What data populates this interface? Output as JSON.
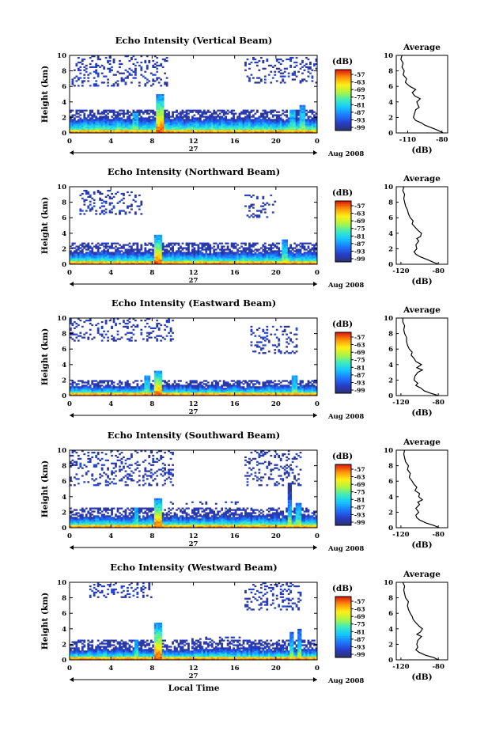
{
  "figure": {
    "date_label": "Aug 2008",
    "x_label": "Local Time",
    "day_label": "27",
    "y_label": "Height (km)",
    "colorbar_unit": "(dB)",
    "avg_title": "Average",
    "avg_unit": "(dB)"
  },
  "chart_data": [
    {
      "type": "heatmap",
      "title": "Echo Intensity (Vertical Beam)",
      "ylabel": "Height (km)",
      "xlabel": "",
      "x_ticks": [
        "0",
        "4",
        "8",
        "12",
        "16",
        "20",
        "0"
      ],
      "y_ticks": [
        "0",
        "2",
        "4",
        "6",
        "8",
        "10"
      ],
      "xlim": [
        0,
        24
      ],
      "ylim": [
        0,
        10
      ],
      "colorbar_ticks": [
        "-57",
        "-63",
        "-69",
        "-75",
        "-81",
        "-87",
        "-93",
        "-99"
      ],
      "color_range": [
        -99,
        -57
      ],
      "features": {
        "bl_top_km": 1.9,
        "bl_upper_km": 3.0,
        "tower_hour": 8.7,
        "tower_top_km": 5.0,
        "minor_towers": [
          {
            "hour": 6.4,
            "top_km": 2.6
          },
          {
            "hour": 21.6,
            "top_km": 3.0
          },
          {
            "hour": 22.6,
            "top_km": 3.6
          }
        ],
        "high_clouds": [
          {
            "from_hour": 0.1,
            "to_hour": 9.6,
            "bottom_km": 6.0,
            "top_km": 10.0
          },
          {
            "from_hour": 17.0,
            "to_hour": 24.0,
            "bottom_km": 6.5,
            "top_km": 9.8
          }
        ]
      },
      "average_profile": {
        "title": "Average",
        "xlabel": "(dB)",
        "x_ticks": [
          "-110",
          "-80"
        ],
        "xlim": [
          -120,
          -75
        ],
        "ylim": [
          0,
          10
        ],
        "height_km": [
          0,
          0.3,
          0.6,
          1.0,
          1.3,
          1.6,
          2.0,
          2.5,
          3.0,
          3.3,
          3.6,
          4.0,
          4.4,
          4.8,
          5.2,
          5.6,
          6.0,
          6.5,
          7.0,
          7.5,
          8.0,
          8.5,
          9.0,
          9.5,
          10.0
        ],
        "echo_db": [
          -79,
          -83,
          -88,
          -95,
          -98,
          -103,
          -105,
          -104,
          -103,
          -100,
          -101,
          -102,
          -99,
          -104,
          -106,
          -103,
          -108,
          -112,
          -111,
          -114,
          -113,
          -115,
          -114,
          -116,
          -115
        ]
      }
    },
    {
      "type": "heatmap",
      "title": "Echo Intensity (Northward Beam)",
      "ylabel": "Height (km)",
      "xlabel": "",
      "x_ticks": [
        "0",
        "4",
        "8",
        "12",
        "16",
        "20",
        "0"
      ],
      "y_ticks": [
        "0",
        "2",
        "4",
        "6",
        "8",
        "10"
      ],
      "xlim": [
        0,
        24
      ],
      "ylim": [
        0,
        10
      ],
      "colorbar_ticks": [
        "-57",
        "-63",
        "-69",
        "-75",
        "-81",
        "-87",
        "-93",
        "-99"
      ],
      "color_range": [
        -99,
        -57
      ],
      "features": {
        "bl_top_km": 1.6,
        "bl_upper_km": 2.8,
        "tower_hour": 8.6,
        "tower_top_km": 3.8,
        "minor_towers": [
          {
            "hour": 20.8,
            "top_km": 3.2
          }
        ],
        "high_clouds": [
          {
            "from_hour": 1.0,
            "to_hour": 7.0,
            "bottom_km": 6.5,
            "top_km": 9.5
          },
          {
            "from_hour": 17.0,
            "to_hour": 20.0,
            "bottom_km": 6.0,
            "top_km": 9.0
          }
        ]
      },
      "average_profile": {
        "title": "Average",
        "xlabel": "(dB)",
        "x_ticks": [
          "-120",
          "-80"
        ],
        "xlim": [
          -125,
          -70
        ],
        "ylim": [
          0,
          10
        ],
        "height_km": [
          0,
          0.3,
          0.6,
          1.0,
          1.3,
          1.6,
          2.0,
          2.5,
          3.0,
          3.3,
          3.6,
          4.0,
          4.4,
          4.8,
          5.2,
          5.6,
          6.0,
          6.5,
          7.0,
          7.5,
          8.0,
          8.5,
          9.0,
          9.5,
          10.0
        ],
        "echo_db": [
          -80,
          -86,
          -92,
          -100,
          -104,
          -106,
          -103,
          -104,
          -101,
          -103,
          -99,
          -98,
          -102,
          -105,
          -108,
          -107,
          -110,
          -112,
          -113,
          -115,
          -116,
          -117,
          -116,
          -118,
          -117
        ]
      }
    },
    {
      "type": "heatmap",
      "title": "Echo Intensity (Eastward Beam)",
      "ylabel": "Height (km)",
      "xlabel": "",
      "x_ticks": [
        "0",
        "4",
        "8",
        "12",
        "16",
        "20",
        "0"
      ],
      "y_ticks": [
        "0",
        "2",
        "4",
        "6",
        "8",
        "10"
      ],
      "xlim": [
        0,
        24
      ],
      "ylim": [
        0,
        10
      ],
      "colorbar_ticks": [
        "-57",
        "-63",
        "-69",
        "-75",
        "-81",
        "-87",
        "-93",
        "-99"
      ],
      "color_range": [
        -99,
        -57
      ],
      "features": {
        "bl_top_km": 1.3,
        "bl_upper_km": 2.0,
        "tower_hour": 8.6,
        "tower_top_km": 3.2,
        "minor_towers": [
          {
            "hour": 7.5,
            "top_km": 2.5
          },
          {
            "hour": 21.8,
            "top_km": 2.5
          }
        ],
        "high_clouds": [
          {
            "from_hour": 0.0,
            "to_hour": 10.0,
            "bottom_km": 7.0,
            "top_km": 10.0
          },
          {
            "from_hour": 17.5,
            "to_hour": 22.0,
            "bottom_km": 5.5,
            "top_km": 9.0
          }
        ]
      },
      "average_profile": {
        "title": "Average",
        "xlabel": "(dB)",
        "x_ticks": [
          "-120",
          "-80"
        ],
        "xlim": [
          -125,
          -70
        ],
        "ylim": [
          0,
          10
        ],
        "height_km": [
          0,
          0.3,
          0.6,
          1.0,
          1.3,
          1.6,
          2.0,
          2.5,
          3.0,
          3.3,
          3.6,
          4.0,
          4.4,
          4.8,
          5.2,
          5.6,
          6.0,
          6.5,
          7.0,
          7.5,
          8.0,
          8.5,
          9.0,
          9.5,
          10.0
        ],
        "echo_db": [
          -80,
          -88,
          -95,
          -99,
          -104,
          -102,
          -106,
          -105,
          -102,
          -97,
          -103,
          -98,
          -104,
          -106,
          -109,
          -108,
          -111,
          -113,
          -114,
          -114,
          -116,
          -117,
          -116,
          -118,
          -118
        ]
      }
    },
    {
      "type": "heatmap",
      "title": "Echo Intensity (Southward Beam)",
      "ylabel": "Height (km)",
      "xlabel": "",
      "x_ticks": [
        "0",
        "4",
        "8",
        "12",
        "16",
        "20",
        "0"
      ],
      "y_ticks": [
        "0",
        "2",
        "4",
        "6",
        "8",
        "10"
      ],
      "xlim": [
        0,
        24
      ],
      "ylim": [
        0,
        10
      ],
      "colorbar_ticks": [
        "-57",
        "-63",
        "-69",
        "-75",
        "-81",
        "-87",
        "-93",
        "-99"
      ],
      "color_range": [
        -99,
        -57
      ],
      "features": {
        "bl_top_km": 1.5,
        "bl_upper_km": 2.5,
        "tower_hour": 8.6,
        "tower_top_km": 3.7,
        "minor_towers": [
          {
            "hour": 6.5,
            "top_km": 2.6
          },
          {
            "hour": 21.3,
            "top_km": 5.8
          },
          {
            "hour": 22.2,
            "top_km": 3.2
          }
        ],
        "high_clouds": [
          {
            "from_hour": 0.0,
            "to_hour": 10.0,
            "bottom_km": 5.5,
            "top_km": 10.0
          },
          {
            "from_hour": 9.5,
            "to_hour": 16.5,
            "bottom_km": 3.0,
            "top_km": 3.4
          },
          {
            "from_hour": 17.0,
            "to_hour": 22.5,
            "bottom_km": 5.5,
            "top_km": 10.0
          }
        ]
      },
      "average_profile": {
        "title": "Average",
        "xlabel": "(dB)",
        "x_ticks": [
          "-120",
          "-80"
        ],
        "xlim": [
          -125,
          -70
        ],
        "ylim": [
          0,
          10
        ],
        "height_km": [
          0,
          0.3,
          0.6,
          1.0,
          1.3,
          1.6,
          2.0,
          2.5,
          3.0,
          3.3,
          3.6,
          4.0,
          4.4,
          4.8,
          5.2,
          5.6,
          6.0,
          6.5,
          7.0,
          7.5,
          8.0,
          8.5,
          9.0,
          9.5,
          10.0
        ],
        "echo_db": [
          -79,
          -85,
          -93,
          -100,
          -103,
          -104,
          -101,
          -104,
          -100,
          -102,
          -97,
          -101,
          -100,
          -105,
          -103,
          -106,
          -108,
          -111,
          -110,
          -113,
          -112,
          -115,
          -116,
          -117,
          -116
        ]
      }
    },
    {
      "type": "heatmap",
      "title": "Echo Intensity (Westward Beam)",
      "ylabel": "Height (km)",
      "xlabel": "Local Time",
      "x_ticks": [
        "0",
        "4",
        "8",
        "12",
        "16",
        "20",
        "0"
      ],
      "y_ticks": [
        "0",
        "2",
        "4",
        "6",
        "8",
        "10"
      ],
      "xlim": [
        0,
        24
      ],
      "ylim": [
        0,
        10
      ],
      "colorbar_ticks": [
        "-57",
        "-63",
        "-69",
        "-75",
        "-81",
        "-87",
        "-93",
        "-99"
      ],
      "color_range": [
        -99,
        -57
      ],
      "features": {
        "bl_top_km": 1.4,
        "bl_upper_km": 2.5,
        "tower_hour": 8.6,
        "tower_top_km": 4.8,
        "minor_towers": [
          {
            "hour": 6.5,
            "top_km": 2.6
          },
          {
            "hour": 21.5,
            "top_km": 3.5
          },
          {
            "hour": 22.3,
            "top_km": 4.0
          }
        ],
        "high_clouds": [
          {
            "from_hour": 2.0,
            "to_hour": 8.0,
            "bottom_km": 8.0,
            "top_km": 10.0
          },
          {
            "from_hour": 11.0,
            "to_hour": 16.5,
            "bottom_km": 2.7,
            "top_km": 3.0
          },
          {
            "from_hour": 17.0,
            "to_hour": 22.5,
            "bottom_km": 6.5,
            "top_km": 10.0
          }
        ]
      },
      "average_profile": {
        "title": "Average",
        "xlabel": "(dB)",
        "x_ticks": [
          "-120",
          "-80"
        ],
        "xlim": [
          -125,
          -70
        ],
        "ylim": [
          0,
          10
        ],
        "height_km": [
          0,
          0.3,
          0.6,
          1.0,
          1.3,
          1.6,
          2.0,
          2.5,
          3.0,
          3.3,
          3.6,
          4.0,
          4.4,
          4.8,
          5.2,
          5.6,
          6.0,
          6.5,
          7.0,
          7.5,
          8.0,
          8.5,
          9.0,
          9.5,
          10.0
        ],
        "echo_db": [
          -80,
          -85,
          -94,
          -101,
          -104,
          -102,
          -103,
          -102,
          -98,
          -103,
          -99,
          -97,
          -101,
          -104,
          -107,
          -108,
          -110,
          -112,
          -113,
          -112,
          -115,
          -116,
          -117,
          -116,
          -118
        ]
      }
    }
  ]
}
